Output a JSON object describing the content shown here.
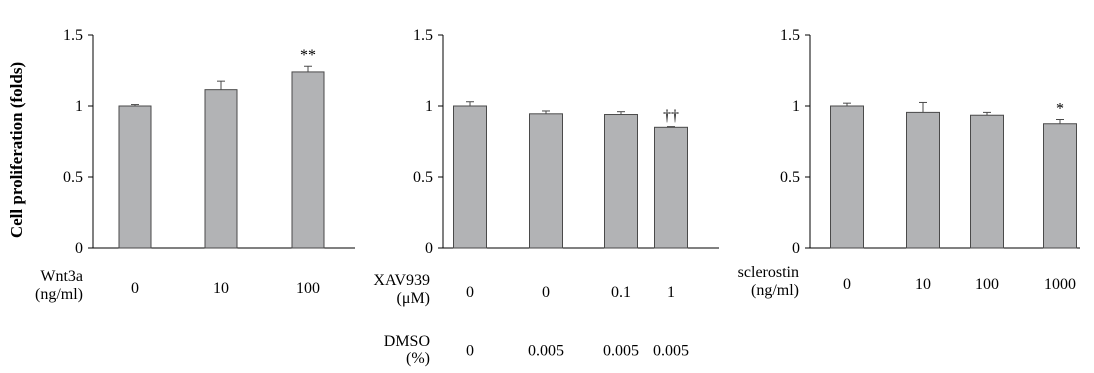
{
  "y_axis_label": "Cell proliferation (folds)",
  "colors": {
    "bar_fill": "#b2b3b5",
    "bar_stroke": "#4a4a4a",
    "axis": "#000000"
  },
  "chart_data": [
    {
      "type": "bar",
      "ylabel": "Cell proliferation (folds)",
      "ylim": [
        0,
        1.5
      ],
      "yticks": [
        "0",
        "0.5",
        "1",
        "1.5"
      ],
      "grid": false,
      "row_labels": [
        [
          "Wnt3a",
          "(ng/ml)"
        ]
      ],
      "category_rows": [
        [
          "0",
          "10",
          "100"
        ]
      ],
      "values": [
        1.0,
        1.115,
        1.24
      ],
      "errors": [
        0.01,
        0.06,
        0.04
      ],
      "annotations": [
        "",
        "",
        "**"
      ]
    },
    {
      "type": "bar",
      "ylim": [
        0,
        1.5
      ],
      "yticks": [
        "0",
        "0.5",
        "1",
        "1.5"
      ],
      "grid": false,
      "row_labels": [
        [
          "XAV939",
          "(μM)"
        ],
        [
          "DMSO",
          "(%)"
        ]
      ],
      "category_rows": [
        [
          "0",
          "0",
          "0.1",
          "1"
        ],
        [
          "0",
          "0.005",
          "0.005",
          "0.005"
        ]
      ],
      "values": [
        1.0,
        0.945,
        0.94,
        0.85
      ],
      "errors": [
        0.03,
        0.02,
        0.02,
        0.005
      ],
      "annotations": [
        "",
        "",
        "",
        "††"
      ]
    },
    {
      "type": "bar",
      "ylim": [
        0,
        1.5
      ],
      "yticks": [
        "0",
        "0.5",
        "1",
        "1.5"
      ],
      "grid": false,
      "row_labels": [
        [
          "sclerostin",
          "(ng/ml)"
        ]
      ],
      "category_rows": [
        [
          "0",
          "10",
          "100",
          "1000"
        ]
      ],
      "values": [
        1.0,
        0.955,
        0.935,
        0.875
      ],
      "errors": [
        0.02,
        0.07,
        0.02,
        0.03
      ],
      "annotations": [
        "",
        "",
        "",
        "*"
      ]
    }
  ]
}
